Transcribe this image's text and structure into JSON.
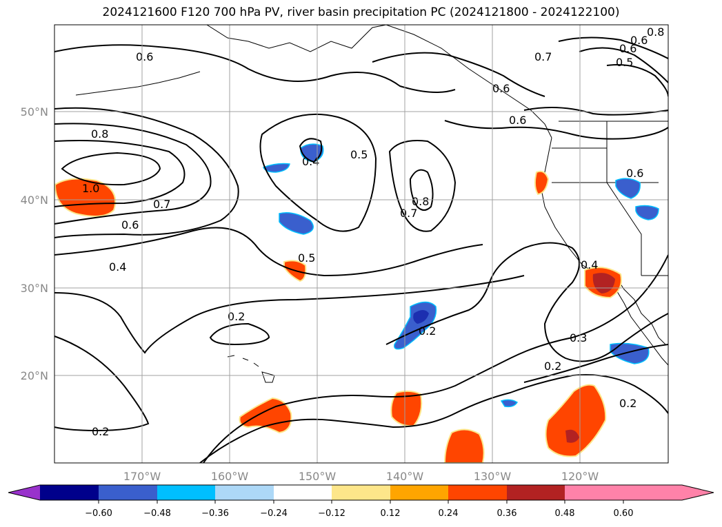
{
  "title": "2024121600 F120 700 hPa PV, river basin precipitation PC (2024121800 - 2024122100)",
  "lat_labels": [
    "50°N",
    "40°N",
    "30°N",
    "20°N"
  ],
  "lon_labels": [
    "170°W",
    "160°W",
    "150°W",
    "140°W",
    "130°W",
    "120°W"
  ],
  "contour_labels": [
    "0.6",
    "0.6",
    "0.8",
    "1.0",
    "0.7",
    "0.6",
    "0.4",
    "0.4",
    "0.5",
    "0.5",
    "0.8",
    "0.7",
    "0.6",
    "0.6",
    "0.7",
    "0.6",
    "0.5",
    "0.8",
    "0.6",
    "0.4",
    "0.2",
    "0.2",
    "0.3",
    "0.2",
    "0.2",
    "0.2"
  ],
  "colorbar": {
    "ticks": [
      "−0.60",
      "−0.48",
      "−0.36",
      "−0.24",
      "−0.12",
      "0.12",
      "0.24",
      "0.36",
      "0.48",
      "0.60"
    ],
    "colors": [
      "#9932cc",
      "#00008b",
      "#3a5fcd",
      "#00bfff",
      "#add8f7",
      "#ffffff",
      "#fde68a",
      "#ffa500",
      "#ff4500",
      "#b22222",
      "#ff82a9"
    ]
  },
  "colors": {
    "blue_fill": "#3a5fcd",
    "dark_blue": "#1c2fb0",
    "orange_fill": "#ff4500",
    "red_fill": "#b22222",
    "light_blue": "#00bfff",
    "yellow": "#fde68a",
    "contour": "#000000",
    "grid": "#a0a0a0"
  }
}
